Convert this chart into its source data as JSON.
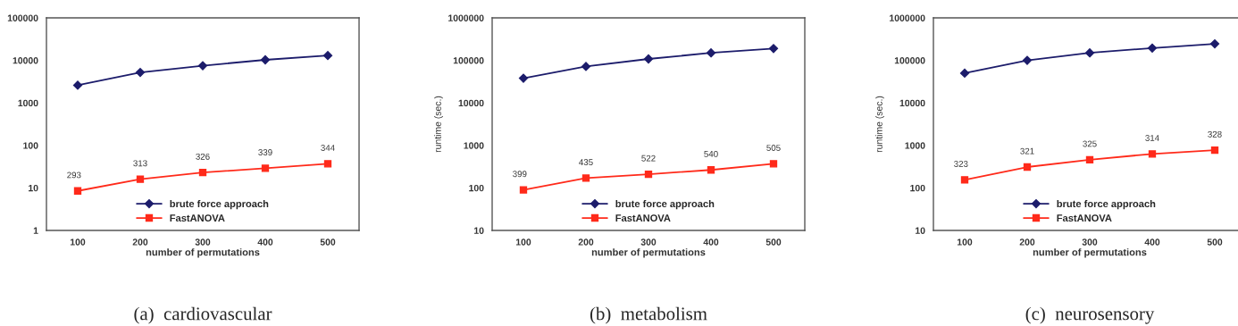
{
  "chart_data": [
    {
      "type": "line",
      "title": "(a)  cardiovascular",
      "xlabel": "number of permutations",
      "categories": [
        "100",
        "200",
        "300",
        "400",
        "500"
      ],
      "log": true,
      "ylim": [
        1,
        100000
      ],
      "yticks": [
        1,
        10,
        100,
        1000,
        10000,
        100000
      ],
      "legend": "bottom",
      "grid": false,
      "series": [
        {
          "name": "brute force approach",
          "color": "#1c1c6b",
          "marker": "diamond",
          "values": [
            2600,
            5200,
            7500,
            10300,
            13000
          ]
        },
        {
          "name": "FastANOVA",
          "color": "#ff2a1a",
          "marker": "square",
          "values": [
            8.5,
            16,
            23,
            29,
            37
          ]
        }
      ],
      "annotations": [
        {
          "text": "293",
          "x": "100",
          "y": 8.5
        },
        {
          "text": "313",
          "x": "200",
          "y": 16
        },
        {
          "text": "326",
          "x": "300",
          "y": 23
        },
        {
          "text": "339",
          "x": "400",
          "y": 29
        },
        {
          "text": "344",
          "x": "500",
          "y": 37
        }
      ]
    },
    {
      "type": "line",
      "title": "(b)  metabolism",
      "xlabel": "number of permutations",
      "ylabel": "runtime (sec.)",
      "categories": [
        "100",
        "200",
        "300",
        "400",
        "500"
      ],
      "log": true,
      "ylim": [
        10,
        1000000
      ],
      "yticks": [
        10,
        100,
        1000,
        10000,
        100000,
        1000000
      ],
      "legend": "bottom",
      "grid": false,
      "series": [
        {
          "name": "brute force approach",
          "color": "#1c1c6b",
          "marker": "diamond",
          "values": [
            38000,
            72000,
            108000,
            150000,
            190000
          ]
        },
        {
          "name": "FastANOVA",
          "color": "#ff2a1a",
          "marker": "square",
          "values": [
            90,
            170,
            210,
            265,
            370
          ]
        }
      ],
      "annotations": [
        {
          "text": "399",
          "x": "100",
          "y": 90
        },
        {
          "text": "435",
          "x": "200",
          "y": 170
        },
        {
          "text": "522",
          "x": "300",
          "y": 210
        },
        {
          "text": "540",
          "x": "400",
          "y": 265
        },
        {
          "text": "505",
          "x": "500",
          "y": 370
        }
      ]
    },
    {
      "type": "line",
      "title": "(c)  neurosensory",
      "xlabel": "number of permutations",
      "ylabel": "runtime (sec.)",
      "categories": [
        "100",
        "200",
        "300",
        "400",
        "500"
      ],
      "log": true,
      "ylim": [
        10,
        1000000
      ],
      "yticks": [
        10,
        100,
        1000,
        10000,
        100000,
        1000000
      ],
      "legend": "bottom",
      "grid": false,
      "series": [
        {
          "name": "brute force approach",
          "color": "#1c1c6b",
          "marker": "diamond",
          "values": [
            50000,
            100000,
            150000,
            195000,
            245000
          ]
        },
        {
          "name": "FastANOVA",
          "color": "#ff2a1a",
          "marker": "square",
          "values": [
            155,
            310,
            460,
            630,
            770
          ]
        }
      ],
      "annotations": [
        {
          "text": "323",
          "x": "100",
          "y": 155
        },
        {
          "text": "321",
          "x": "200",
          "y": 310
        },
        {
          "text": "325",
          "x": "300",
          "y": 460
        },
        {
          "text": "314",
          "x": "400",
          "y": 630
        },
        {
          "text": "328",
          "x": "500",
          "y": 770
        }
      ]
    }
  ]
}
